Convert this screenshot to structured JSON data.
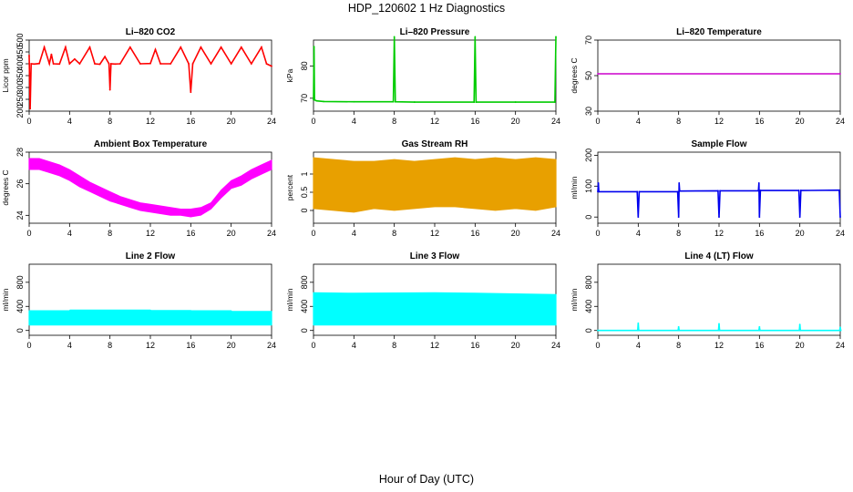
{
  "figure": {
    "title": "HDP_120602  1 Hz Diagnostics",
    "xlabel": "Hour of Day (UTC)"
  },
  "chart_data": [
    {
      "id": "co2",
      "type": "line",
      "title": "Li–820 CO2",
      "ylabel": "Licor ppm",
      "color": "#ff0000",
      "xlim": [
        0,
        24
      ],
      "ylim": [
        200,
        500
      ],
      "xticks": [
        0,
        4,
        8,
        12,
        16,
        20,
        24
      ],
      "yticks": [
        200,
        250,
        300,
        350,
        400,
        450,
        500
      ],
      "x": [
        0,
        0.1,
        0.2,
        0.5,
        1,
        1.5,
        2,
        2.2,
        2.4,
        3,
        3.6,
        4,
        4.5,
        5,
        6,
        6.5,
        7,
        7.5,
        7.9,
        8,
        8.1,
        8.5,
        9,
        10,
        11,
        12,
        12.5,
        13,
        14,
        15,
        15.8,
        16,
        16.2,
        17,
        18,
        19,
        20,
        21,
        22,
        23,
        23.5,
        24
      ],
      "y": [
        435,
        210,
        400,
        399,
        401,
        470,
        400,
        440,
        400,
        399,
        470,
        400,
        420,
        400,
        470,
        400,
        398,
        430,
        400,
        290,
        400,
        399,
        400,
        470,
        400,
        401,
        460,
        400,
        400,
        470,
        400,
        280,
        400,
        470,
        400,
        470,
        400,
        470,
        400,
        470,
        400,
        390
      ]
    },
    {
      "id": "pressure",
      "type": "line",
      "title": "Li–820 Pressure",
      "ylabel": "kPa",
      "color": "#00cc00",
      "xlim": [
        0,
        24
      ],
      "ylim": [
        66,
        88
      ],
      "xticks": [
        0,
        4,
        8,
        12,
        16,
        20,
        24
      ],
      "yticks": [
        70,
        80
      ],
      "x": [
        0,
        0.05,
        0.1,
        0.3,
        1,
        4,
        7.9,
        8,
        8.1,
        10,
        15.9,
        16,
        16.1,
        20,
        23.9,
        24
      ],
      "y": [
        69.6,
        86,
        69.5,
        69.2,
        69.0,
        68.9,
        68.9,
        89,
        68.9,
        68.8,
        68.8,
        89,
        68.8,
        68.8,
        68.8,
        89
      ]
    },
    {
      "id": "temp",
      "type": "line",
      "title": "Li–820 Temperature",
      "ylabel": "degrees C",
      "color": "#cc00cc",
      "xlim": [
        0,
        24
      ],
      "ylim": [
        30,
        70
      ],
      "xticks": [
        0,
        4,
        8,
        12,
        16,
        20,
        24
      ],
      "yticks": [
        30,
        50,
        70
      ],
      "x": [
        0,
        24
      ],
      "y": [
        51,
        51
      ]
    },
    {
      "id": "ambient",
      "type": "area",
      "title": "Ambient Box Temperature",
      "ylabel": "degrees C",
      "color": "#ff00ff",
      "xlim": [
        0,
        24
      ],
      "ylim": [
        23.5,
        28
      ],
      "xticks": [
        0,
        4,
        8,
        12,
        16,
        20,
        24
      ],
      "yticks": [
        24,
        26,
        28
      ],
      "x": [
        0,
        1,
        2,
        3,
        4,
        5,
        6,
        7,
        8,
        9,
        10,
        11,
        12,
        13,
        14,
        15,
        16,
        17,
        18,
        19,
        20,
        21,
        22,
        23,
        24
      ],
      "upper": [
        27.6,
        27.6,
        27.4,
        27.2,
        26.9,
        26.5,
        26.1,
        25.8,
        25.5,
        25.2,
        25.0,
        24.8,
        24.7,
        24.6,
        24.5,
        24.4,
        24.4,
        24.5,
        24.8,
        25.6,
        26.2,
        26.5,
        26.9,
        27.2,
        27.5
      ],
      "lower": [
        26.9,
        26.9,
        26.7,
        26.5,
        26.2,
        25.8,
        25.5,
        25.2,
        24.9,
        24.7,
        24.5,
        24.3,
        24.2,
        24.1,
        24.0,
        24.0,
        23.9,
        24.0,
        24.4,
        25.1,
        25.7,
        25.9,
        26.3,
        26.6,
        26.9
      ]
    },
    {
      "id": "rh",
      "type": "area",
      "title": "Gas Stream RH",
      "ylabel": "percent",
      "color": "#e8a000",
      "xlim": [
        0,
        24
      ],
      "ylim": [
        -0.35,
        1.6
      ],
      "xticks": [
        0,
        4,
        8,
        12,
        16,
        20,
        24
      ],
      "yticks": [
        0,
        0.5,
        1.0
      ],
      "x": [
        0,
        2,
        4,
        6,
        8,
        10,
        12,
        14,
        16,
        18,
        20,
        22,
        24
      ],
      "upper": [
        1.45,
        1.4,
        1.35,
        1.35,
        1.4,
        1.35,
        1.4,
        1.45,
        1.4,
        1.45,
        1.4,
        1.45,
        1.4
      ],
      "lower": [
        0.05,
        0.0,
        -0.05,
        0.05,
        0.0,
        0.05,
        0.1,
        0.1,
        0.05,
        0.0,
        0.05,
        0.0,
        0.1
      ]
    },
    {
      "id": "sample",
      "type": "line",
      "title": "Sample Flow",
      "ylabel": "ml/min",
      "color": "#0000ee",
      "xlim": [
        0,
        24
      ],
      "ylim": [
        -20,
        210
      ],
      "xticks": [
        0,
        4,
        8,
        12,
        16,
        20,
        24
      ],
      "yticks": [
        0,
        100,
        200
      ],
      "x": [
        0,
        0.05,
        0.1,
        3.9,
        4,
        4.1,
        7.9,
        8,
        8.05,
        8.1,
        11.9,
        12,
        12.1,
        15.9,
        15.95,
        16,
        16.1,
        19.9,
        20,
        20.1,
        23.9,
        24
      ],
      "y": [
        82,
        110,
        82,
        82,
        0,
        82,
        82,
        0,
        110,
        84,
        85,
        0,
        85,
        85,
        110,
        0,
        86,
        86,
        0,
        86,
        87,
        0
      ]
    },
    {
      "id": "line2",
      "type": "area",
      "title": "Line 2 Flow",
      "ylabel": "ml/min",
      "color": "#00ffff",
      "xlim": [
        0,
        24
      ],
      "ylim": [
        -80,
        1100
      ],
      "xticks": [
        0,
        4,
        8,
        12,
        16,
        20,
        24
      ],
      "yticks": [
        0,
        400,
        800
      ],
      "x": [
        0,
        4,
        4.05,
        8,
        8.05,
        12,
        12.05,
        16,
        16.05,
        20,
        20.05,
        24
      ],
      "upper": [
        330,
        330,
        340,
        340,
        340,
        340,
        335,
        335,
        330,
        330,
        320,
        320
      ],
      "lower": [
        90,
        90,
        90,
        90,
        90,
        90,
        90,
        90,
        90,
        90,
        90,
        90
      ]
    },
    {
      "id": "line3",
      "type": "area",
      "title": "Line 3 Flow",
      "ylabel": "ml/min",
      "color": "#00ffff",
      "xlim": [
        0,
        24
      ],
      "ylim": [
        -80,
        1100
      ],
      "xticks": [
        0,
        4,
        8,
        12,
        16,
        20,
        24
      ],
      "yticks": [
        0,
        400,
        800
      ],
      "x": [
        0,
        4,
        8,
        12,
        16,
        20,
        24
      ],
      "upper": [
        630,
        620,
        625,
        630,
        620,
        610,
        600
      ],
      "lower": [
        90,
        90,
        90,
        90,
        90,
        90,
        90
      ]
    },
    {
      "id": "line4",
      "type": "line",
      "title": "Line 4 (LT) Flow",
      "ylabel": "ml/min",
      "color": "#00ffff",
      "xlim": [
        0,
        24
      ],
      "ylim": [
        -80,
        1100
      ],
      "xticks": [
        0,
        4,
        8,
        12,
        16,
        20,
        24
      ],
      "yticks": [
        0,
        400,
        800
      ],
      "x": [
        0,
        3.95,
        4,
        4.05,
        7.95,
        8,
        8.05,
        11.95,
        12,
        12.05,
        15.95,
        16,
        16.05,
        19.95,
        20,
        20.05,
        23.95,
        24,
        24.05
      ],
      "y": [
        0,
        0,
        120,
        0,
        0,
        60,
        0,
        0,
        110,
        0,
        0,
        60,
        0,
        0,
        100,
        0,
        0,
        50,
        0
      ]
    }
  ]
}
